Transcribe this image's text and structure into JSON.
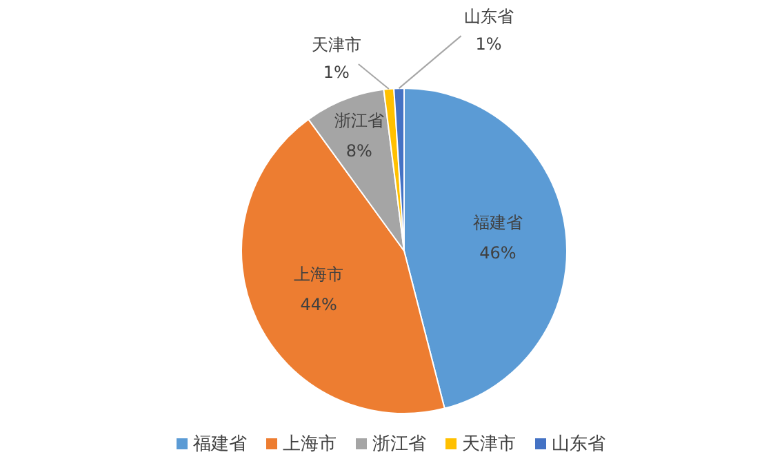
{
  "chart_data": {
    "type": "pie",
    "categories": [
      "福建省",
      "上海市",
      "浙江省",
      "天津市",
      "山东省"
    ],
    "values": [
      46,
      44,
      8,
      1,
      1
    ],
    "value_labels": [
      "46%",
      "44%",
      "8%",
      "1%",
      "1%"
    ],
    "colors": [
      "#5b9bd5",
      "#ed7d31",
      "#a5a5a5",
      "#ffc000",
      "#4472c4"
    ],
    "legend": "bottom"
  }
}
